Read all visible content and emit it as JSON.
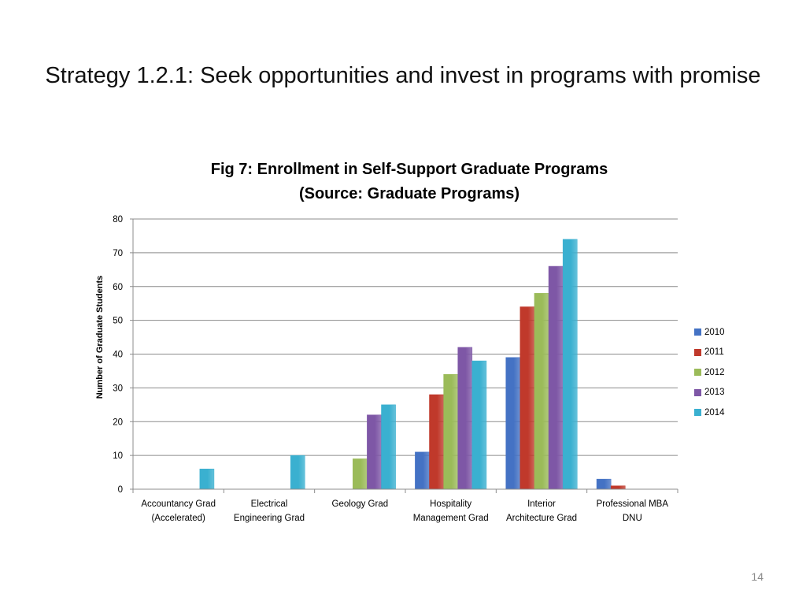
{
  "slide": {
    "title": "Strategy 1.2.1: Seek opportunities and invest in programs with promise",
    "page_number": "14"
  },
  "chart_data": {
    "type": "bar",
    "title_lines": [
      "Fig 7: Enrollment in Self-Support Graduate Programs",
      "(Source: Graduate Programs)"
    ],
    "xlabel": "",
    "ylabel": "Number of Graduate Students",
    "ylim": [
      0,
      80
    ],
    "yticks": [
      0,
      10,
      20,
      30,
      40,
      50,
      60,
      70,
      80
    ],
    "grid": true,
    "legend_position": "right",
    "categories": [
      [
        "Accountancy Grad",
        "(Accelerated)"
      ],
      [
        "Electrical",
        "Engineering Grad"
      ],
      [
        "Geology Grad"
      ],
      [
        "Hospitality",
        "Management Grad"
      ],
      [
        "Interior",
        "Architecture Grad"
      ],
      [
        "Professional MBA",
        "DNU"
      ]
    ],
    "series": [
      {
        "name": "2010",
        "color": "#4472c4",
        "values": [
          0,
          0,
          0,
          11,
          39,
          3
        ]
      },
      {
        "name": "2011",
        "color": "#c0392b",
        "values": [
          0,
          0,
          0,
          28,
          54,
          1
        ]
      },
      {
        "name": "2012",
        "color": "#9bbb59",
        "values": [
          0,
          0,
          9,
          34,
          58,
          0
        ]
      },
      {
        "name": "2013",
        "color": "#7e57a6",
        "values": [
          0,
          0,
          22,
          42,
          66,
          0
        ]
      },
      {
        "name": "2014",
        "color": "#3ab0d0",
        "values": [
          6,
          10,
          25,
          38,
          74,
          0
        ]
      }
    ]
  }
}
